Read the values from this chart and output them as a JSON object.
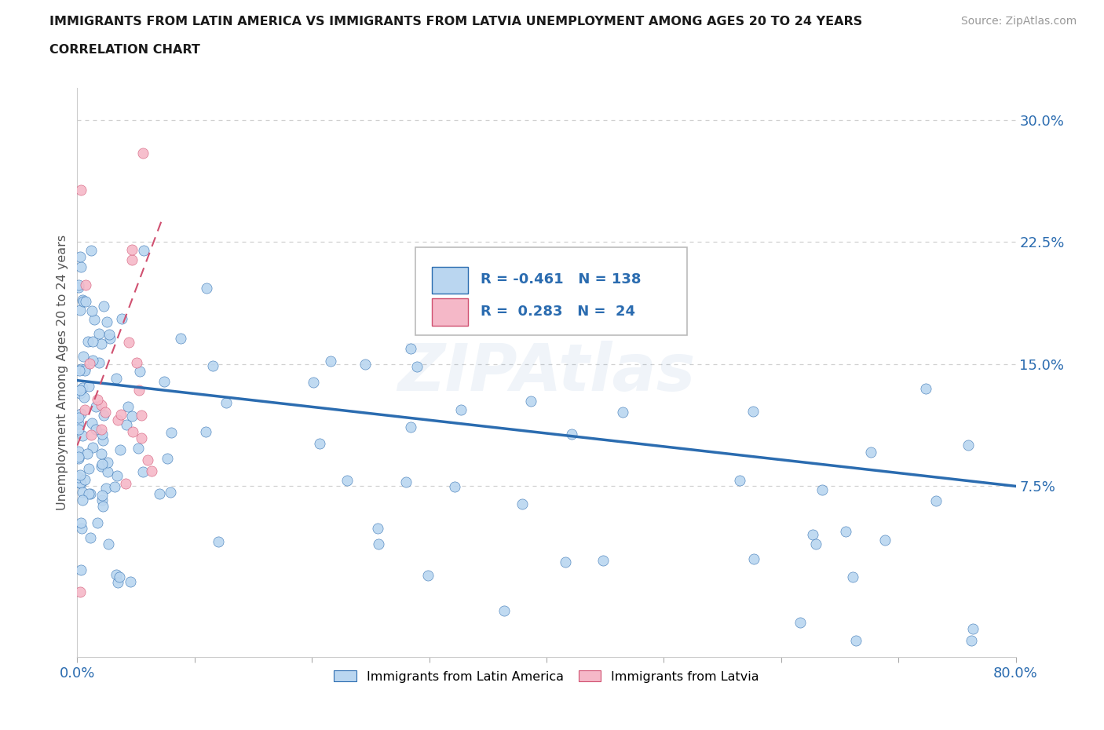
{
  "title_line1": "IMMIGRANTS FROM LATIN AMERICA VS IMMIGRANTS FROM LATVIA UNEMPLOYMENT AMONG AGES 20 TO 24 YEARS",
  "title_line2": "CORRELATION CHART",
  "source": "Source: ZipAtlas.com",
  "ylabel": "Unemployment Among Ages 20 to 24 years",
  "xlim": [
    0.0,
    0.8
  ],
  "ylim": [
    -0.03,
    0.32
  ],
  "yticks": [
    0.075,
    0.15,
    0.225,
    0.3
  ],
  "ytick_labels": [
    "7.5%",
    "15.0%",
    "22.5%",
    "30.0%"
  ],
  "r_latin": -0.461,
  "n_latin": 138,
  "r_latvia": 0.283,
  "n_latvia": 24,
  "scatter_color_latin": "#bad6f0",
  "scatter_color_latvia": "#f5b8c8",
  "line_color_latin": "#2b6cb0",
  "line_color_latvia": "#d05070",
  "watermark": "ZIPAtlas",
  "background_color": "#ffffff",
  "grid_color": "#d0d0d0",
  "legend_label_latin": "Immigrants from Latin America",
  "legend_label_latvia": "Immigrants from Latvia"
}
